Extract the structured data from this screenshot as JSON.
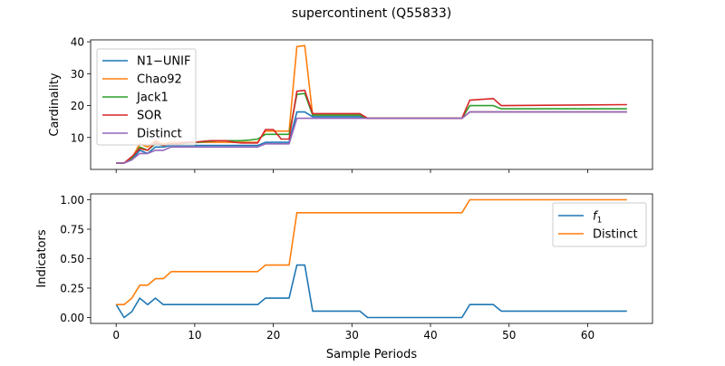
{
  "figure": {
    "title": "supercontinent (Q55833)",
    "xlabel": "Sample Periods"
  },
  "chart_data": [
    {
      "type": "line",
      "ylabel": "Cardinality",
      "xlim": [
        -3.25,
        68.25
      ],
      "ylim": [
        0,
        40.6
      ],
      "xticks": [
        0,
        10,
        20,
        30,
        40,
        50,
        60
      ],
      "yticks": [
        10,
        20,
        30,
        40
      ],
      "xtick_labels_visible": false,
      "grid": false,
      "legend": "upper-left",
      "series": [
        {
          "name": "N1−UNIF",
          "color": "#1f77b4",
          "points": [
            [
              0,
              2
            ],
            [
              1,
              2
            ],
            [
              2,
              3
            ],
            [
              3,
              6
            ],
            [
              4,
              5
            ],
            [
              5,
              7
            ],
            [
              6,
              7
            ],
            [
              7,
              7.5
            ],
            [
              8,
              7.5
            ],
            [
              9,
              7.5
            ],
            [
              10,
              7.5
            ],
            [
              11,
              7.5
            ],
            [
              12,
              7.5
            ],
            [
              13,
              7.5
            ],
            [
              14,
              7.5
            ],
            [
              15,
              7.5
            ],
            [
              16,
              7.5
            ],
            [
              17,
              7.5
            ],
            [
              18,
              7.5
            ],
            [
              19,
              8.5
            ],
            [
              20,
              8.5
            ],
            [
              21,
              8.5
            ],
            [
              22,
              8.5
            ],
            [
              23,
              18
            ],
            [
              24,
              18
            ],
            [
              25,
              16.5
            ],
            [
              26,
              16.5
            ],
            [
              27,
              16.5
            ],
            [
              28,
              16.5
            ],
            [
              29,
              16.5
            ],
            [
              30,
              16.5
            ],
            [
              31,
              16.5
            ],
            [
              32,
              16
            ],
            [
              33,
              16
            ],
            [
              44,
              16
            ],
            [
              45,
              18
            ],
            [
              65,
              18
            ]
          ]
        },
        {
          "name": "Chao92",
          "color": "#ff7f0e",
          "points": [
            [
              0,
              2
            ],
            [
              1,
              2
            ],
            [
              2,
              3.5
            ],
            [
              3,
              8
            ],
            [
              4,
              7
            ],
            [
              5,
              9
            ],
            [
              6,
              8
            ],
            [
              7,
              8.5
            ],
            [
              8,
              8.5
            ],
            [
              9,
              8.5
            ],
            [
              10,
              8.5
            ],
            [
              11,
              8.5
            ],
            [
              12,
              8.5
            ],
            [
              13,
              8.5
            ],
            [
              14,
              8.5
            ],
            [
              15,
              8.5
            ],
            [
              16,
              8.5
            ],
            [
              17,
              8.5
            ],
            [
              18,
              8.5
            ],
            [
              19,
              12
            ],
            [
              20,
              12
            ],
            [
              21,
              12
            ],
            [
              22,
              12
            ],
            [
              23,
              38.5
            ],
            [
              24,
              38.8
            ],
            [
              25,
              17
            ],
            [
              26,
              17
            ],
            [
              27,
              17
            ],
            [
              28,
              17
            ],
            [
              29,
              17
            ],
            [
              30,
              17
            ],
            [
              31,
              17
            ],
            [
              32,
              16
            ],
            [
              33,
              16
            ],
            [
              44,
              16
            ],
            [
              45,
              18
            ],
            [
              65,
              18
            ]
          ]
        },
        {
          "name": "Jack1",
          "color": "#2ca02c",
          "points": [
            [
              0,
              2
            ],
            [
              1,
              2
            ],
            [
              2,
              3.5
            ],
            [
              3,
              7
            ],
            [
              4,
              6
            ],
            [
              5,
              8
            ],
            [
              6,
              7.5
            ],
            [
              7,
              8
            ],
            [
              8,
              8
            ],
            [
              9,
              8.2
            ],
            [
              10,
              8.4
            ],
            [
              11,
              8.6
            ],
            [
              12,
              8.8
            ],
            [
              13,
              9
            ],
            [
              14,
              9
            ],
            [
              15,
              9
            ],
            [
              16,
              9
            ],
            [
              17,
              9.2
            ],
            [
              18,
              9.5
            ],
            [
              19,
              11
            ],
            [
              20,
              11
            ],
            [
              21,
              11
            ],
            [
              22,
              11
            ],
            [
              23,
              23.5
            ],
            [
              24,
              23.8
            ],
            [
              25,
              17
            ],
            [
              26,
              17
            ],
            [
              27,
              17
            ],
            [
              28,
              17
            ],
            [
              29,
              17
            ],
            [
              30,
              17
            ],
            [
              31,
              17
            ],
            [
              32,
              16
            ],
            [
              33,
              16
            ],
            [
              44,
              16
            ],
            [
              45,
              20
            ],
            [
              48,
              20
            ],
            [
              49,
              19
            ],
            [
              65,
              19
            ]
          ]
        },
        {
          "name": "SOR",
          "color": "#d62728",
          "points": [
            [
              0,
              2
            ],
            [
              1,
              2
            ],
            [
              2,
              4
            ],
            [
              3,
              6.5
            ],
            [
              4,
              6
            ],
            [
              5,
              8.5
            ],
            [
              6,
              7.5
            ],
            [
              7,
              8
            ],
            [
              8,
              8
            ],
            [
              9,
              8.5
            ],
            [
              10,
              8.5
            ],
            [
              11,
              8.8
            ],
            [
              12,
              9
            ],
            [
              13,
              9
            ],
            [
              14,
              9
            ],
            [
              15,
              8.5
            ],
            [
              16,
              8.3
            ],
            [
              17,
              8.3
            ],
            [
              18,
              8.3
            ],
            [
              19,
              12.5
            ],
            [
              20,
              12.5
            ],
            [
              21,
              9.5
            ],
            [
              22,
              9.5
            ],
            [
              23,
              24.5
            ],
            [
              24,
              24.8
            ],
            [
              25,
              17.5
            ],
            [
              26,
              17.5
            ],
            [
              27,
              17.5
            ],
            [
              28,
              17.5
            ],
            [
              29,
              17.5
            ],
            [
              30,
              17.5
            ],
            [
              31,
              17.5
            ],
            [
              32,
              16
            ],
            [
              33,
              16
            ],
            [
              44,
              16
            ],
            [
              45,
              21.7
            ],
            [
              48,
              22.2
            ],
            [
              49,
              20
            ],
            [
              65,
              20.3
            ]
          ]
        },
        {
          "name": "Distinct",
          "color": "#9467bd",
          "points": [
            [
              0,
              2
            ],
            [
              1,
              2
            ],
            [
              2,
              3
            ],
            [
              3,
              5
            ],
            [
              4,
              5
            ],
            [
              5,
              6
            ],
            [
              6,
              6
            ],
            [
              7,
              7
            ],
            [
              8,
              7
            ],
            [
              9,
              7
            ],
            [
              10,
              7
            ],
            [
              11,
              7
            ],
            [
              12,
              7
            ],
            [
              13,
              7
            ],
            [
              14,
              7
            ],
            [
              15,
              7
            ],
            [
              16,
              7
            ],
            [
              17,
              7
            ],
            [
              18,
              7
            ],
            [
              19,
              8
            ],
            [
              20,
              8
            ],
            [
              21,
              8
            ],
            [
              22,
              8
            ],
            [
              23,
              16
            ],
            [
              24,
              16
            ],
            [
              25,
              16
            ],
            [
              26,
              16
            ],
            [
              27,
              16
            ],
            [
              28,
              16
            ],
            [
              29,
              16
            ],
            [
              30,
              16
            ],
            [
              31,
              16
            ],
            [
              32,
              16
            ],
            [
              33,
              16
            ],
            [
              44,
              16
            ],
            [
              45,
              18
            ],
            [
              65,
              18
            ]
          ]
        }
      ]
    },
    {
      "type": "line",
      "ylabel": "Indicators",
      "xlim": [
        -3.25,
        68.25
      ],
      "ylim": [
        -0.05,
        1.05
      ],
      "xticks": [
        0,
        10,
        20,
        30,
        40,
        50,
        60
      ],
      "yticks": [
        0.0,
        0.25,
        0.5,
        0.75,
        1.0
      ],
      "ytick_labels": [
        "0.00",
        "0.25",
        "0.50",
        "0.75",
        "1.00"
      ],
      "grid": false,
      "legend": "upper-right",
      "series": [
        {
          "name": "f1",
          "color": "#1f77b4",
          "points": [
            [
              0,
              0.11
            ],
            [
              1,
              0
            ],
            [
              2,
              0.05
            ],
            [
              3,
              0.165
            ],
            [
              4,
              0.11
            ],
            [
              5,
              0.165
            ],
            [
              6,
              0.11
            ],
            [
              18,
              0.11
            ],
            [
              19,
              0.165
            ],
            [
              22,
              0.165
            ],
            [
              23,
              0.445
            ],
            [
              24,
              0.445
            ],
            [
              25,
              0.055
            ],
            [
              31,
              0.055
            ],
            [
              32,
              0
            ],
            [
              44,
              0
            ],
            [
              45,
              0.11
            ],
            [
              48,
              0.11
            ],
            [
              49,
              0.055
            ],
            [
              65,
              0.055
            ]
          ]
        },
        {
          "name": "Distinct",
          "color": "#ff7f0e",
          "points": [
            [
              0,
              0.11
            ],
            [
              1,
              0.11
            ],
            [
              2,
              0.165
            ],
            [
              3,
              0.275
            ],
            [
              4,
              0.275
            ],
            [
              5,
              0.33
            ],
            [
              6,
              0.33
            ],
            [
              7,
              0.39
            ],
            [
              18,
              0.39
            ],
            [
              19,
              0.445
            ],
            [
              22,
              0.445
            ],
            [
              23,
              0.89
            ],
            [
              44,
              0.89
            ],
            [
              45,
              1
            ],
            [
              65,
              1
            ]
          ]
        }
      ]
    }
  ]
}
